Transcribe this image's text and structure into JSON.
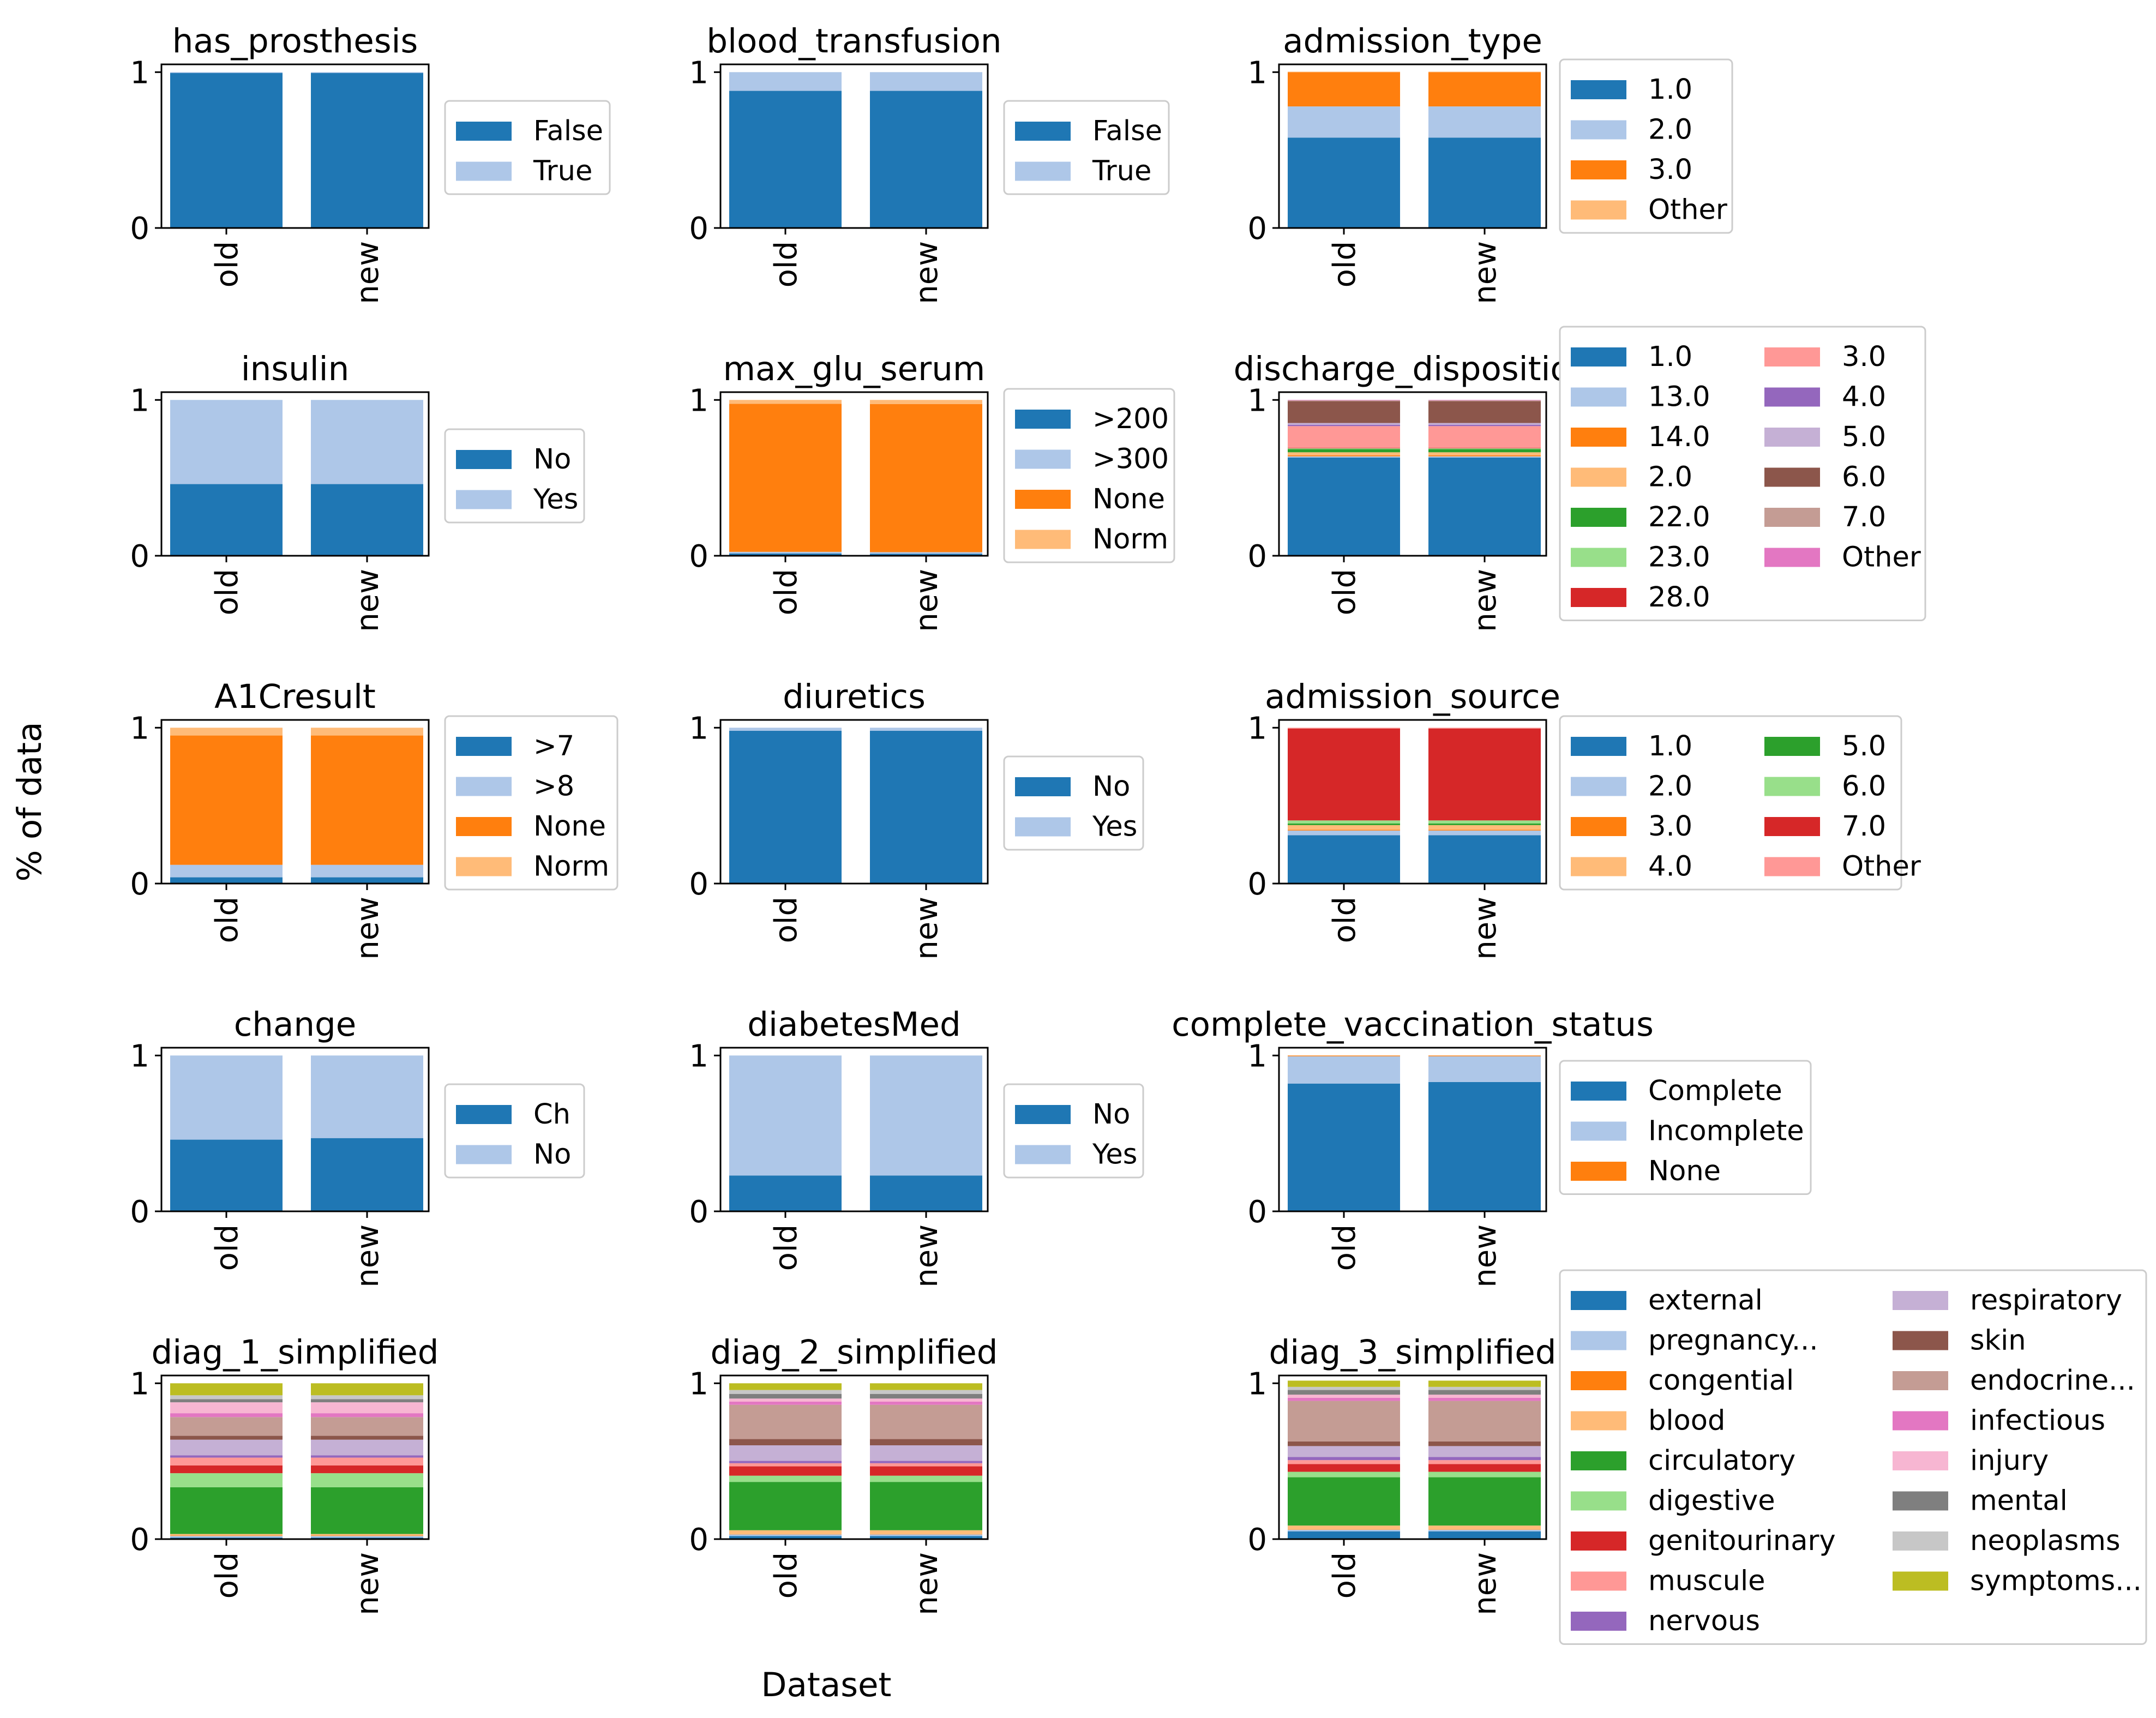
{
  "figure": {
    "xlabel": "Dataset",
    "ylabel": "% of data"
  },
  "palette": [
    "#1f77b4",
    "#aec7e8",
    "#ff7f0e",
    "#ffbb78",
    "#2ca02c",
    "#98df8a",
    "#d62728",
    "#ff9896",
    "#9467bd",
    "#c5b0d5",
    "#8c564b",
    "#c49c94",
    "#e377c2",
    "#f7b6d2",
    "#7f7f7f",
    "#c7c7c7",
    "#bcbd22"
  ],
  "chart_data": [
    {
      "type": "bar",
      "stacked": true,
      "title": "has_prosthesis",
      "categories": [
        "old",
        "new"
      ],
      "yticks": [
        "0",
        "1"
      ],
      "ylim": [
        0,
        1.05
      ],
      "legend_position": "right",
      "series": [
        {
          "name": "False",
          "values": [
            0.995,
            0.995
          ]
        },
        {
          "name": "True",
          "values": [
            0.005,
            0.005
          ]
        }
      ]
    },
    {
      "type": "bar",
      "stacked": true,
      "title": "blood_transfusion",
      "categories": [
        "old",
        "new"
      ],
      "yticks": [
        "0",
        "1"
      ],
      "ylim": [
        0,
        1.05
      ],
      "legend_position": "right",
      "series": [
        {
          "name": "False",
          "values": [
            0.88,
            0.88
          ]
        },
        {
          "name": "True",
          "values": [
            0.12,
            0.12
          ]
        }
      ]
    },
    {
      "type": "bar",
      "stacked": true,
      "title": "admission_type",
      "categories": [
        "old",
        "new"
      ],
      "yticks": [
        "0",
        "1"
      ],
      "ylim": [
        0,
        1.05
      ],
      "legend_position": "right",
      "series": [
        {
          "name": "1.0",
          "values": [
            0.58,
            0.58
          ]
        },
        {
          "name": "2.0",
          "values": [
            0.2,
            0.2
          ]
        },
        {
          "name": "3.0",
          "values": [
            0.22,
            0.22
          ]
        },
        {
          "name": "Other",
          "values": [
            0.003,
            0.003
          ]
        }
      ]
    },
    {
      "type": "bar",
      "stacked": true,
      "title": "insulin",
      "categories": [
        "old",
        "new"
      ],
      "yticks": [
        "0",
        "1"
      ],
      "ylim": [
        0,
        1.05
      ],
      "legend_position": "right",
      "series": [
        {
          "name": "No",
          "values": [
            0.46,
            0.46
          ]
        },
        {
          "name": "Yes",
          "values": [
            0.54,
            0.54
          ]
        }
      ]
    },
    {
      "type": "bar",
      "stacked": true,
      "title": "max_glu_serum",
      "categories": [
        "old",
        "new"
      ],
      "yticks": [
        "0",
        "1"
      ],
      "ylim": [
        0,
        1.05
      ],
      "legend_position": "right",
      "series": [
        {
          "name": ">200",
          "values": [
            0.015,
            0.013
          ]
        },
        {
          "name": ">300",
          "values": [
            0.01,
            0.01
          ]
        },
        {
          "name": "None",
          "values": [
            0.95,
            0.95
          ]
        },
        {
          "name": "Norm",
          "values": [
            0.025,
            0.027
          ]
        }
      ]
    },
    {
      "type": "bar",
      "stacked": true,
      "title": "discharge_disposition",
      "categories": [
        "old",
        "new"
      ],
      "yticks": [
        "0",
        "1"
      ],
      "ylim": [
        0,
        1.05
      ],
      "legend_position": "right",
      "legend_columns": 2,
      "series": [
        {
          "name": "1.0",
          "values": [
            0.63,
            0.63
          ]
        },
        {
          "name": "13.0",
          "values": [
            0.008,
            0.008
          ]
        },
        {
          "name": "14.0",
          "values": [
            0.006,
            0.006
          ]
        },
        {
          "name": "2.0",
          "values": [
            0.02,
            0.02
          ]
        },
        {
          "name": "22.0",
          "values": [
            0.02,
            0.02
          ]
        },
        {
          "name": "23.0",
          "values": [
            0.005,
            0.005
          ]
        },
        {
          "name": "28.0",
          "values": [
            0.003,
            0.003
          ]
        },
        {
          "name": "3.0",
          "values": [
            0.14,
            0.14
          ]
        },
        {
          "name": "4.0",
          "values": [
            0.008,
            0.008
          ]
        },
        {
          "name": "5.0",
          "values": [
            0.012,
            0.012
          ]
        },
        {
          "name": "6.0",
          "values": [
            0.14,
            0.14
          ]
        },
        {
          "name": "7.0",
          "values": [
            0.005,
            0.005
          ]
        },
        {
          "name": "Other",
          "values": [
            0.003,
            0.003
          ]
        }
      ]
    },
    {
      "type": "bar",
      "stacked": true,
      "title": "A1Cresult",
      "categories": [
        "old",
        "new"
      ],
      "yticks": [
        "0",
        "1"
      ],
      "ylim": [
        0,
        1.05
      ],
      "legend_position": "right",
      "series": [
        {
          "name": ">7",
          "values": [
            0.04,
            0.04
          ]
        },
        {
          "name": ">8",
          "values": [
            0.08,
            0.08
          ]
        },
        {
          "name": "None",
          "values": [
            0.83,
            0.83
          ]
        },
        {
          "name": "Norm",
          "values": [
            0.05,
            0.05
          ]
        }
      ]
    },
    {
      "type": "bar",
      "stacked": true,
      "title": "diuretics",
      "categories": [
        "old",
        "new"
      ],
      "yticks": [
        "0",
        "1"
      ],
      "ylim": [
        0,
        1.05
      ],
      "legend_position": "right",
      "series": [
        {
          "name": "No",
          "values": [
            0.98,
            0.98
          ]
        },
        {
          "name": "Yes",
          "values": [
            0.02,
            0.02
          ]
        }
      ]
    },
    {
      "type": "bar",
      "stacked": true,
      "title": "admission_source",
      "categories": [
        "old",
        "new"
      ],
      "yticks": [
        "0",
        "1"
      ],
      "ylim": [
        0,
        1.05
      ],
      "legend_position": "right",
      "legend_columns": 2,
      "series": [
        {
          "name": "1.0",
          "values": [
            0.31,
            0.31
          ]
        },
        {
          "name": "2.0",
          "values": [
            0.03,
            0.03
          ]
        },
        {
          "name": "3.0",
          "values": [
            0.005,
            0.005
          ]
        },
        {
          "name": "4.0",
          "values": [
            0.03,
            0.03
          ]
        },
        {
          "name": "5.0",
          "values": [
            0.01,
            0.01
          ]
        },
        {
          "name": "6.0",
          "values": [
            0.02,
            0.02
          ]
        },
        {
          "name": "7.0",
          "values": [
            0.59,
            0.59
          ]
        },
        {
          "name": "Other",
          "values": [
            0.005,
            0.005
          ]
        }
      ]
    },
    {
      "type": "bar",
      "stacked": true,
      "title": "change",
      "categories": [
        "old",
        "new"
      ],
      "yticks": [
        "0",
        "1"
      ],
      "ylim": [
        0,
        1.05
      ],
      "legend_position": "right",
      "series": [
        {
          "name": "Ch",
          "values": [
            0.46,
            0.47
          ]
        },
        {
          "name": "No",
          "values": [
            0.54,
            0.53
          ]
        }
      ]
    },
    {
      "type": "bar",
      "stacked": true,
      "title": "diabetesMed",
      "categories": [
        "old",
        "new"
      ],
      "yticks": [
        "0",
        "1"
      ],
      "ylim": [
        0,
        1.05
      ],
      "legend_position": "right",
      "series": [
        {
          "name": "No",
          "values": [
            0.23,
            0.23
          ]
        },
        {
          "name": "Yes",
          "values": [
            0.77,
            0.77
          ]
        }
      ]
    },
    {
      "type": "bar",
      "stacked": true,
      "title": "complete_vaccination_status",
      "categories": [
        "old",
        "new"
      ],
      "yticks": [
        "0",
        "1"
      ],
      "ylim": [
        0,
        1.05
      ],
      "legend_position": "right",
      "series": [
        {
          "name": "Complete",
          "values": [
            0.82,
            0.83
          ]
        },
        {
          "name": "Incomplete",
          "values": [
            0.175,
            0.165
          ]
        },
        {
          "name": "None",
          "values": [
            0.005,
            0.005
          ]
        }
      ]
    },
    {
      "type": "bar",
      "stacked": true,
      "title": "diag_1_simplified",
      "categories": [
        "old",
        "new"
      ],
      "yticks": [
        "0",
        "1"
      ],
      "ylim": [
        0,
        1.05
      ],
      "series": [
        {
          "name": "external",
          "values": [
            0.01,
            0.01
          ]
        },
        {
          "name": "pregnancy...",
          "values": [
            0.01,
            0.01
          ]
        },
        {
          "name": "congential",
          "values": [
            0.003,
            0.003
          ]
        },
        {
          "name": "blood",
          "values": [
            0.01,
            0.01
          ]
        },
        {
          "name": "circulatory",
          "values": [
            0.3,
            0.3
          ]
        },
        {
          "name": "digestive",
          "values": [
            0.09,
            0.09
          ]
        },
        {
          "name": "genitourinary",
          "values": [
            0.05,
            0.05
          ]
        },
        {
          "name": "muscule",
          "values": [
            0.05,
            0.05
          ]
        },
        {
          "name": "nervous",
          "values": [
            0.015,
            0.015
          ]
        },
        {
          "name": "respiratory",
          "values": [
            0.1,
            0.1
          ]
        },
        {
          "name": "skin",
          "values": [
            0.025,
            0.025
          ]
        },
        {
          "name": "endocrine...",
          "values": [
            0.12,
            0.12
          ]
        },
        {
          "name": "infectious",
          "values": [
            0.025,
            0.025
          ]
        },
        {
          "name": "injury",
          "values": [
            0.07,
            0.07
          ]
        },
        {
          "name": "mental",
          "values": [
            0.02,
            0.02
          ]
        },
        {
          "name": "neoplasms",
          "values": [
            0.025,
            0.025
          ]
        },
        {
          "name": "symptoms...",
          "values": [
            0.077,
            0.077
          ]
        }
      ]
    },
    {
      "type": "bar",
      "stacked": true,
      "title": "diag_2_simplified",
      "categories": [
        "old",
        "new"
      ],
      "yticks": [
        "0",
        "1"
      ],
      "ylim": [
        0,
        1.05
      ],
      "series": [
        {
          "name": "external",
          "values": [
            0.02,
            0.02
          ]
        },
        {
          "name": "pregnancy...",
          "values": [
            0.01,
            0.01
          ]
        },
        {
          "name": "congential",
          "values": [
            0.002,
            0.002
          ]
        },
        {
          "name": "blood",
          "values": [
            0.025,
            0.025
          ]
        },
        {
          "name": "circulatory",
          "values": [
            0.31,
            0.31
          ]
        },
        {
          "name": "digestive",
          "values": [
            0.04,
            0.04
          ]
        },
        {
          "name": "genitourinary",
          "values": [
            0.06,
            0.06
          ]
        },
        {
          "name": "muscule",
          "values": [
            0.02,
            0.02
          ]
        },
        {
          "name": "nervous",
          "values": [
            0.015,
            0.015
          ]
        },
        {
          "name": "respiratory",
          "values": [
            0.1,
            0.1
          ]
        },
        {
          "name": "skin",
          "values": [
            0.04,
            0.04
          ]
        },
        {
          "name": "endocrine...",
          "values": [
            0.22,
            0.22
          ]
        },
        {
          "name": "infectious",
          "values": [
            0.02,
            0.02
          ]
        },
        {
          "name": "injury",
          "values": [
            0.02,
            0.02
          ]
        },
        {
          "name": "mental",
          "values": [
            0.03,
            0.03
          ]
        },
        {
          "name": "neoplasms",
          "values": [
            0.025,
            0.025
          ]
        },
        {
          "name": "symptoms...",
          "values": [
            0.043,
            0.043
          ]
        }
      ]
    },
    {
      "type": "bar",
      "stacked": true,
      "title": "diag_3_simplified",
      "categories": [
        "old",
        "new"
      ],
      "yticks": [
        "0",
        "1"
      ],
      "ylim": [
        0,
        1.05
      ],
      "legend_position": "right",
      "legend_columns": 2,
      "series": [
        {
          "name": "external",
          "values": [
            0.05,
            0.05
          ]
        },
        {
          "name": "pregnancy...",
          "values": [
            0.01,
            0.01
          ]
        },
        {
          "name": "congential",
          "values": [
            0.002,
            0.002
          ]
        },
        {
          "name": "blood",
          "values": [
            0.025,
            0.025
          ]
        },
        {
          "name": "circulatory",
          "values": [
            0.31,
            0.31
          ]
        },
        {
          "name": "digestive",
          "values": [
            0.035,
            0.035
          ]
        },
        {
          "name": "genitourinary",
          "values": [
            0.05,
            0.05
          ]
        },
        {
          "name": "muscule",
          "values": [
            0.025,
            0.025
          ]
        },
        {
          "name": "nervous",
          "values": [
            0.02,
            0.02
          ]
        },
        {
          "name": "respiratory",
          "values": [
            0.07,
            0.07
          ]
        },
        {
          "name": "skin",
          "values": [
            0.03,
            0.03
          ]
        },
        {
          "name": "endocrine...",
          "values": [
            0.26,
            0.26
          ]
        },
        {
          "name": "infectious",
          "values": [
            0.02,
            0.02
          ]
        },
        {
          "name": "injury",
          "values": [
            0.02,
            0.02
          ]
        },
        {
          "name": "mental",
          "values": [
            0.03,
            0.03
          ]
        },
        {
          "name": "neoplasms",
          "values": [
            0.02,
            0.02
          ]
        },
        {
          "name": "symptoms...",
          "values": [
            0.04,
            0.04
          ]
        }
      ]
    }
  ]
}
